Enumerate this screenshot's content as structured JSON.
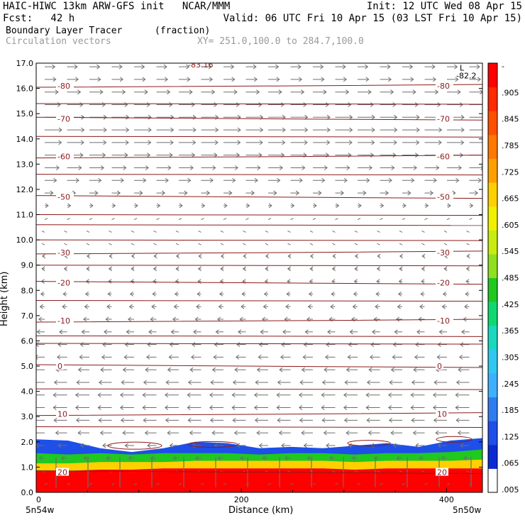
{
  "header": {
    "line1_left": "HAIC-HIWC 13km ARW-GFS init   NCAR/MMM",
    "line1_right": "Init: 12 UTC Wed 08 Apr 15",
    "line2_left": "Fcst:   42 h",
    "line2_right": "Valid: 06 UTC Fri 10 Apr 15 (03 LST Fri 10 Apr 15)",
    "field": "Boundary Layer Tracer",
    "units": "(fraction)",
    "vectors": "Circulation vectors",
    "xsec": "XY= 251.0,100.0 to 284.7,100.0"
  },
  "colors": {
    "contour": "#8b1a1a",
    "vector": "#6e6e6e",
    "scale": [
      "#ffffff",
      "#0c2ad4",
      "#1e4fe8",
      "#2f7cf0",
      "#3fb0ff",
      "#30c8f0",
      "#18d8c0",
      "#10d870",
      "#20c820",
      "#90e020",
      "#c8ec10",
      "#f0f000",
      "#ffd000",
      "#ffa000",
      "#ff7800",
      "#ff5000",
      "#ff2a00",
      "#ff0000"
    ]
  },
  "chart_data": {
    "type": "heatmap",
    "title": "Boundary Layer Tracer",
    "units": "(fraction)",
    "xlabel": "Distance (km)",
    "ylabel": "Height (km)",
    "xlim": [
      0,
      435
    ],
    "ylim": [
      0,
      17
    ],
    "x_ticks": [
      0,
      200,
      400
    ],
    "x_tick_labels": [
      "0",
      "200",
      "400"
    ],
    "x_end_labels": [
      "5n54w",
      "5n50w"
    ],
    "y_ticks": [
      0,
      1,
      2,
      3,
      4,
      5,
      6,
      7,
      8,
      9,
      10,
      11,
      12,
      13,
      14,
      15,
      16,
      17
    ],
    "y_tick_labels": [
      "0.0",
      "1.0",
      "2.0",
      "3.0",
      "4.0",
      "5.0",
      "6.0",
      "7.0",
      "8.0",
      "9.0",
      "10.0",
      "11.0",
      "12.0",
      "13.0",
      "14.0",
      "15.0",
      "16.0",
      "17.0"
    ],
    "colorbar_labels": [
      "-",
      ".905",
      ".845",
      ".785",
      ".725",
      ".665",
      ".605",
      ".545",
      ".485",
      ".425",
      ".365",
      ".305",
      ".245",
      ".185",
      ".125",
      ".065",
      ".005"
    ],
    "tracer_layers": [
      {
        "label": "fraction > 0.9",
        "top_km": [
          0.85,
          0.85,
          0.9,
          0.9,
          0.95,
          0.95,
          0.95,
          0.95,
          0.95,
          0.95,
          0.9,
          0.95,
          0.95,
          0.95,
          0.95
        ]
      },
      {
        "label": "fraction 0.5",
        "top_km": [
          1.15,
          1.15,
          1.2,
          1.2,
          1.2,
          1.25,
          1.25,
          1.25,
          1.25,
          1.25,
          1.2,
          1.25,
          1.25,
          1.25,
          1.3
        ]
      },
      {
        "label": "fraction 0.1",
        "top_km": [
          1.55,
          1.5,
          1.55,
          1.5,
          1.55,
          1.55,
          1.55,
          1.5,
          1.55,
          1.55,
          1.5,
          1.55,
          1.55,
          1.6,
          1.7
        ]
      },
      {
        "label": "fraction 0.005",
        "top_km": [
          2.1,
          2.05,
          1.75,
          1.6,
          1.75,
          2.0,
          1.95,
          1.75,
          1.8,
          1.75,
          1.85,
          1.95,
          1.8,
          2.05,
          2.15
        ]
      }
    ],
    "temperature_contours": [
      {
        "label": "-80",
        "height_km": 16.1
      },
      {
        "label": "-70",
        "height_km": 14.8
      },
      {
        "label": "-60",
        "height_km": 13.3
      },
      {
        "label": "-50",
        "height_km": 11.7
      },
      {
        "label": "-30",
        "height_km": 9.5
      },
      {
        "label": "-20",
        "height_km": 8.3
      },
      {
        "label": "-10",
        "height_km": 6.8
      },
      {
        "label": "0",
        "height_km": 5.0
      },
      {
        "label": "10",
        "height_km": 3.1
      },
      {
        "label": "20",
        "height_km": 0.8
      }
    ],
    "annotations": [
      "-83.16",
      "L",
      "-82.2"
    ],
    "wind_profile": [
      {
        "z": 16.5,
        "u": 0.6
      },
      {
        "z": 15.0,
        "u": 1.0
      },
      {
        "z": 14.0,
        "u": 1.0
      },
      {
        "z": 13.0,
        "u": 0.9
      },
      {
        "z": 12.0,
        "u": 0.6
      },
      {
        "z": 11.2,
        "u": 0.15
      },
      {
        "z": 10.0,
        "u": -0.1
      },
      {
        "z": 9.0,
        "u": -0.15
      },
      {
        "z": 8.0,
        "u": -0.2
      },
      {
        "z": 7.0,
        "u": -0.3
      },
      {
        "z": 6.0,
        "u": -0.5
      },
      {
        "z": 5.0,
        "u": -0.6
      },
      {
        "z": 4.0,
        "u": -0.8
      },
      {
        "z": 3.0,
        "u": -0.8
      },
      {
        "z": 2.0,
        "u": -0.6
      },
      {
        "z": 0.5,
        "u": 0.0
      }
    ]
  }
}
